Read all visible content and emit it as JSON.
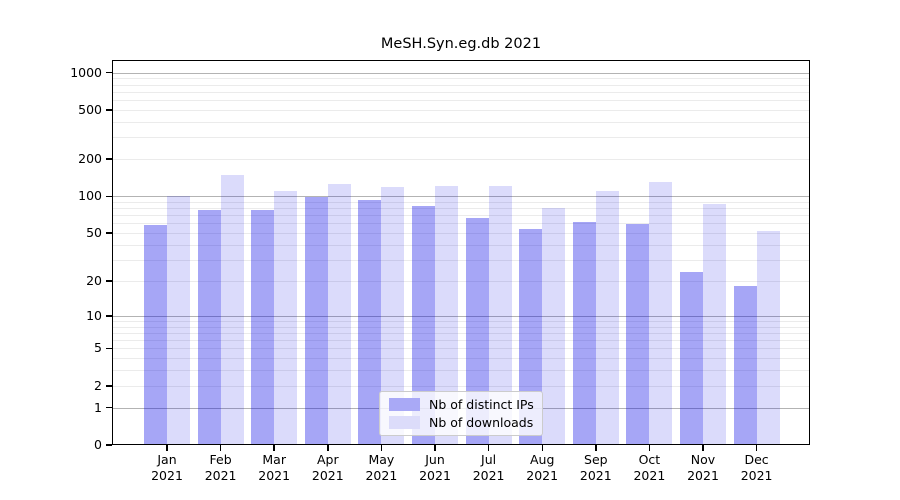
{
  "chart_data": {
    "type": "bar",
    "title": "MeSH.Syn.eg.db 2021",
    "categories": [
      "Jan",
      "Feb",
      "Mar",
      "Apr",
      "May",
      "Jun",
      "Jul",
      "Aug",
      "Sep",
      "Oct",
      "Nov",
      "Dec"
    ],
    "year_label": "2021",
    "series": [
      {
        "name": "Nb of distinct IPs",
        "bar_color": "#0000E659",
        "legend_color": "#A9A9F6",
        "values": [
          58,
          77,
          77,
          98,
          93,
          83,
          66,
          54,
          62,
          59,
          24,
          18
        ]
      },
      {
        "name": "Nb of downloads",
        "bar_color": "#0000E624",
        "legend_color": "#DCDCFA",
        "values": [
          100,
          150,
          110,
          125,
          120,
          122,
          122,
          80,
          110,
          130,
          87,
          52
        ]
      }
    ],
    "yscale": "log1p",
    "ylim": [
      0,
      1264
    ],
    "yticks": [
      1000,
      500,
      200,
      100,
      50,
      20,
      10,
      5,
      2,
      1,
      0
    ],
    "grid": {
      "major": [
        1,
        10,
        100,
        1000
      ],
      "minor": [
        2,
        3,
        4,
        5,
        6,
        7,
        8,
        9,
        20,
        30,
        40,
        50,
        60,
        70,
        80,
        90,
        200,
        300,
        400,
        500,
        600,
        700,
        800,
        900
      ]
    },
    "legend_position": "lower-center",
    "colors": {
      "spine": "#000000",
      "major_grid": "#b3b3b3",
      "minor_grid": "#ebebeb",
      "legend_border": "#cccccc"
    }
  }
}
